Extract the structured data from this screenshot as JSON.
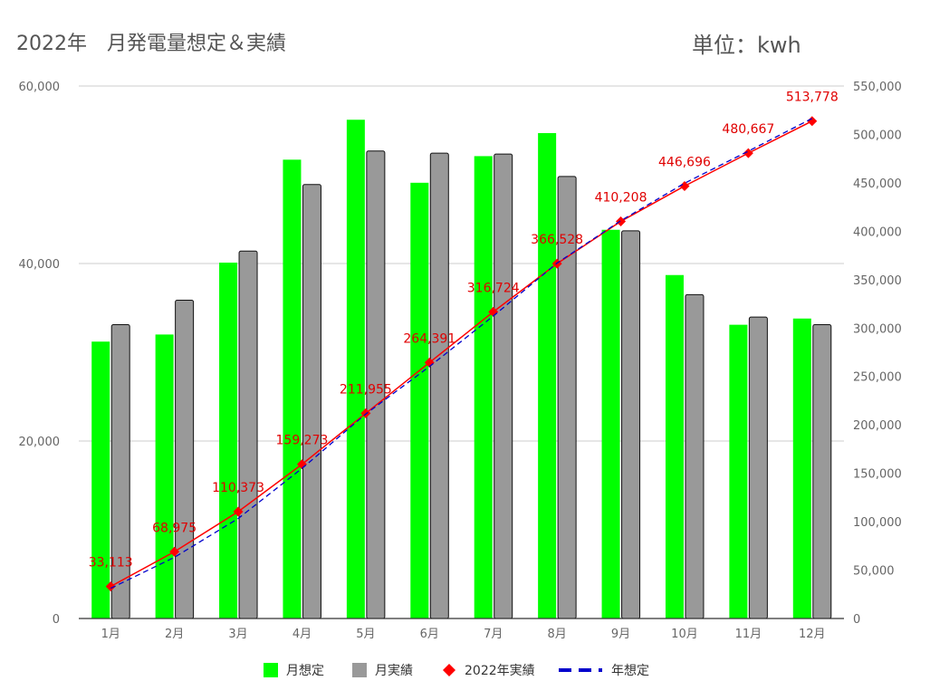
{
  "header": {
    "title": "2022年　月発電量想定＆実績",
    "unit": "単位：kwh"
  },
  "chart_data": {
    "type": "bar",
    "title": "2022年　月発電量想定＆実績",
    "categories": [
      "1月",
      "2月",
      "3月",
      "4月",
      "5月",
      "6月",
      "7月",
      "8月",
      "9月",
      "10月",
      "11月",
      "12月"
    ],
    "series": [
      {
        "name": "月想定",
        "type": "bar",
        "axis": "left",
        "color": "#00ff00",
        "values": [
          31200,
          32000,
          40100,
          51700,
          56200,
          49100,
          52100,
          54700,
          43800,
          38700,
          33100,
          33800
        ]
      },
      {
        "name": "月実績",
        "type": "bar",
        "axis": "left",
        "color": "#999999",
        "values": [
          33113,
          35862,
          41398,
          48900,
          52682,
          52436,
          52333,
          49804,
          43680,
          36488,
          33971,
          33111
        ]
      },
      {
        "name": "2022年実績",
        "type": "line",
        "axis": "right",
        "color": "#ff0000",
        "marker": "diamond",
        "values": [
          33113,
          68975,
          110373,
          159273,
          211955,
          264391,
          316724,
          366528,
          410208,
          446696,
          480667,
          513778
        ],
        "labels": [
          "33,113",
          "68,975",
          "110,373",
          "159,273",
          "211,955",
          "264,391",
          "316,724",
          "366,528",
          "410,208",
          "446,696",
          "480,667",
          "513,778"
        ]
      },
      {
        "name": "年想定",
        "type": "line",
        "axis": "right",
        "color": "#0000cc",
        "dashed": true,
        "values": [
          31200,
          63200,
          103300,
          155000,
          211200,
          260300,
          312400,
          367100,
          410900,
          449600,
          482700,
          516500
        ]
      }
    ],
    "yleft": {
      "min": 0,
      "max": 60000,
      "ticks": [
        "0",
        "20,000",
        "40,000",
        "60,000"
      ],
      "tick_values": [
        0,
        20000,
        40000,
        60000
      ]
    },
    "yright": {
      "min": 0,
      "max": 550000,
      "ticks": [
        "0",
        "50,000",
        "100,000",
        "150,000",
        "200,000",
        "250,000",
        "300,000",
        "350,000",
        "400,000",
        "450,000",
        "500,000",
        "550,000"
      ],
      "tick_values": [
        0,
        50000,
        100000,
        150000,
        200000,
        250000,
        300000,
        350000,
        400000,
        450000,
        500000,
        550000
      ]
    },
    "grid": true,
    "legend_position": "bottom"
  }
}
